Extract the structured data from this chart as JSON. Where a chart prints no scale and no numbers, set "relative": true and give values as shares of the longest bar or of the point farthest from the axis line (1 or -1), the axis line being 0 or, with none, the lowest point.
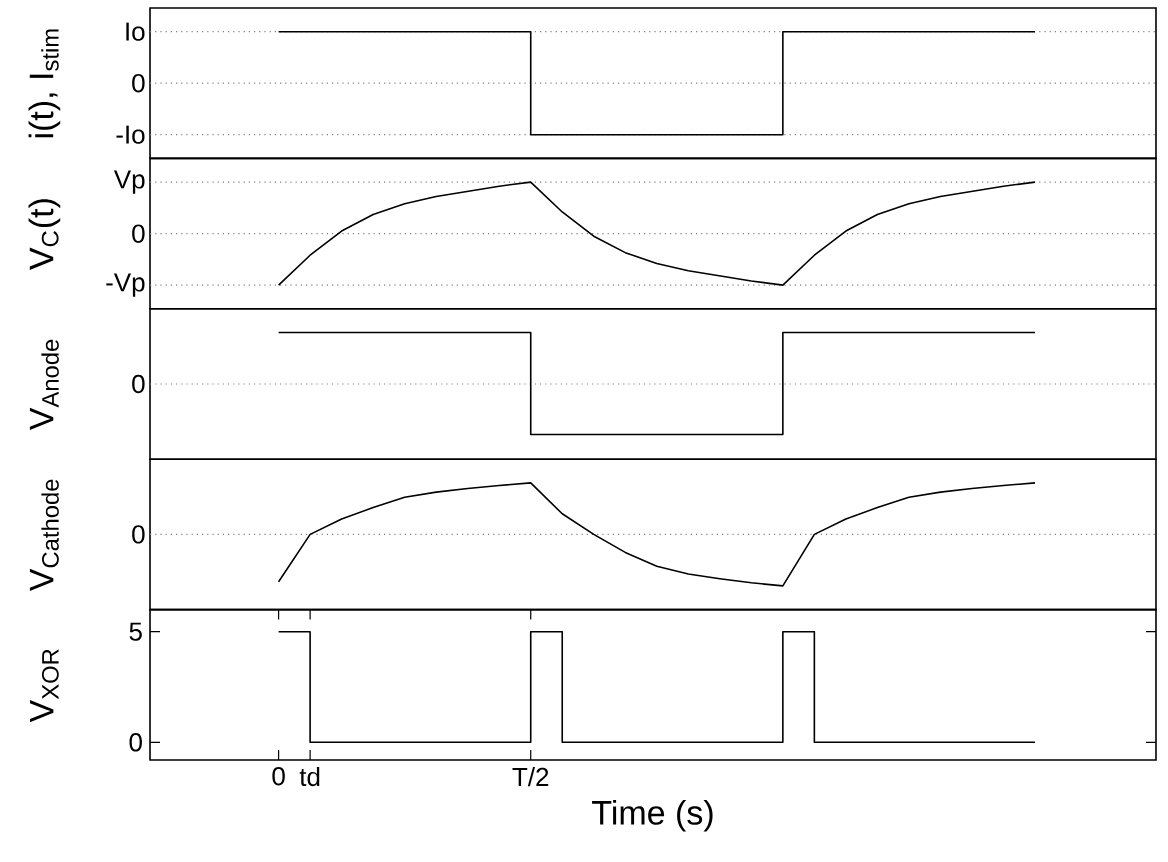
{
  "chart_data": [
    {
      "type": "step",
      "ylabel": "i(t), I$_{stim}$",
      "relative": true,
      "line_style": "solid",
      "categories": [
        null,
        null,
        null,
        null,
        null,
        null,
        null,
        null,
        null,
        null,
        null,
        null,
        null,
        null,
        null,
        null,
        null,
        null,
        null,
        null,
        null,
        null,
        null,
        null,
        null
      ],
      "ref_lines": [
        {
          "axis": "y",
          "value": 1,
          "label": "Io",
          "line_style": "dotted"
        },
        {
          "axis": "y",
          "value": 0,
          "label": "0",
          "line_style": "dotted"
        },
        {
          "axis": "y",
          "value": -1,
          "label": "-Io",
          "line_style": "dotted"
        }
      ],
      "series": [
        {
          "color": "#000000",
          "values": [
            1,
            1,
            1,
            1,
            1,
            1,
            1,
            1,
            -1,
            -1,
            -1,
            -1,
            -1,
            -1,
            -1,
            -1,
            1,
            1,
            1,
            1,
            1,
            1,
            1,
            1,
            1
          ]
        }
      ]
    },
    {
      "type": "line",
      "ylabel": "V$_{C}$(t)",
      "relative": true,
      "line_style": "solid",
      "categories": [
        null,
        null,
        null,
        null,
        null,
        null,
        null,
        null,
        null,
        null,
        null,
        null,
        null,
        null,
        null,
        null,
        null,
        null,
        null,
        null,
        null,
        null,
        null,
        null,
        null
      ],
      "ref_lines": [
        {
          "axis": "y",
          "value": 1,
          "label": "Vp",
          "line_style": "dotted"
        },
        {
          "axis": "y",
          "value": 0,
          "label": "0",
          "line_style": "dotted"
        },
        {
          "axis": "y",
          "value": -1,
          "label": "-Vp",
          "line_style": "dotted"
        }
      ],
      "series": [
        {
          "color": "#000000",
          "values": [
            -1,
            -0.42,
            0.05,
            0.37,
            0.58,
            0.72,
            0.82,
            0.92,
            1,
            0.42,
            -0.05,
            -0.37,
            -0.58,
            -0.72,
            -0.82,
            -0.92,
            -1,
            -0.42,
            0.05,
            0.37,
            0.58,
            0.72,
            0.82,
            0.92,
            1
          ]
        }
      ]
    },
    {
      "type": "step",
      "ylabel": "V$_{Anode}$",
      "relative": true,
      "line_style": "solid",
      "categories": [
        null,
        null,
        null,
        null,
        null,
        null,
        null,
        null,
        null,
        null,
        null,
        null,
        null,
        null,
        null,
        null,
        null,
        null,
        null,
        null,
        null,
        null,
        null,
        null,
        null
      ],
      "ref_lines": [
        {
          "axis": "y",
          "value": 0,
          "label": "0",
          "line_style": "dotted"
        }
      ],
      "series": [
        {
          "color": "#000000",
          "values": [
            1,
            1,
            1,
            1,
            1,
            1,
            1,
            1,
            -0.98,
            -0.98,
            -0.98,
            -0.98,
            -0.98,
            -0.98,
            -0.98,
            -0.98,
            1,
            1,
            1,
            1,
            1,
            1,
            1,
            1,
            1
          ]
        }
      ]
    },
    {
      "type": "line",
      "ylabel": "V$_{Cathode}$",
      "relative": true,
      "line_style": "solid",
      "categories": [
        null,
        null,
        null,
        null,
        null,
        null,
        null,
        null,
        null,
        null,
        null,
        null,
        null,
        null,
        null,
        null,
        null,
        null,
        null,
        null,
        null,
        null,
        null,
        null,
        null
      ],
      "ref_lines": [
        {
          "axis": "y",
          "value": 0,
          "label": "0",
          "line_style": "dotted"
        }
      ],
      "series": [
        {
          "color": "#000000",
          "values": [
            -0.92,
            0,
            0.3,
            0.52,
            0.72,
            0.82,
            0.89,
            0.95,
            1,
            0.4,
            0,
            -0.35,
            -0.62,
            -0.77,
            -0.86,
            -0.94,
            -1,
            0,
            0.3,
            0.52,
            0.72,
            0.82,
            0.89,
            0.95,
            1
          ]
        }
      ]
    },
    {
      "type": "step",
      "ylabel": "V$_{XOR}$",
      "xlabel": "Time (s)",
      "ylim": [
        -0.8,
        6.0
      ],
      "yticks": [
        0,
        5
      ],
      "line_style": "solid",
      "categories": [
        "0",
        "td",
        null,
        null,
        null,
        null,
        null,
        null,
        "T/2",
        null,
        null,
        null,
        null,
        null,
        null,
        null,
        null,
        null,
        null,
        null,
        null,
        null,
        null,
        null,
        null
      ],
      "series": [
        {
          "color": "#000000",
          "values": [
            5,
            0,
            0,
            0,
            0,
            0,
            0,
            0,
            5,
            0,
            0,
            0,
            0,
            0,
            0,
            0,
            5,
            0,
            0,
            0,
            0,
            0,
            0,
            0,
            0
          ]
        }
      ]
    }
  ]
}
